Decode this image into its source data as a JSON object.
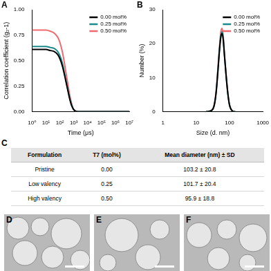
{
  "chart_data": [
    {
      "panel": "A",
      "type": "line",
      "x_label": "Time (μs)",
      "y_label": "Correlation coefficient (g₂-1)",
      "log": "x",
      "grid": false,
      "legend": "top-right",
      "xlim": [
        1,
        10000000
      ],
      "xticks": [
        {
          "value": 1,
          "label": "10⁰"
        },
        {
          "value": 10,
          "label": "10¹"
        },
        {
          "value": 100,
          "label": "10²"
        },
        {
          "value": 1000,
          "label": "10³"
        },
        {
          "value": 10000,
          "label": "10⁴"
        },
        {
          "value": 100000,
          "label": "10⁵"
        },
        {
          "value": 1000000,
          "label": "10⁶"
        },
        {
          "value": 10000000,
          "label": "10⁷"
        }
      ],
      "ylim": [
        0,
        1
      ],
      "yticks": [
        {
          "value": 0,
          "label": "0.00"
        },
        {
          "value": 0.25,
          "label": "0.25"
        },
        {
          "value": 0.5,
          "label": "0.50"
        },
        {
          "value": 0.75,
          "label": "0.75"
        },
        {
          "value": 1,
          "label": "1.00"
        }
      ],
      "x": [
        1,
        10,
        20,
        40,
        70,
        100,
        150,
        200,
        300,
        400,
        500,
        700,
        1000,
        2000,
        10000,
        100000,
        1000000,
        10000000
      ],
      "series": [
        {
          "name": "0.00 mol%",
          "color": "#000000",
          "values": [
            0.61,
            0.61,
            0.6,
            0.59,
            0.56,
            0.52,
            0.45,
            0.38,
            0.27,
            0.19,
            0.13,
            0.06,
            0.02,
            0,
            0,
            0,
            0,
            0
          ]
        },
        {
          "name": "0.25 mol%",
          "color": "#1b8a8c",
          "values": [
            0.64,
            0.64,
            0.63,
            0.62,
            0.59,
            0.55,
            0.48,
            0.4,
            0.28,
            0.2,
            0.14,
            0.07,
            0.02,
            0,
            0,
            0,
            0,
            0
          ]
        },
        {
          "name": "0.50 mol%",
          "color": "#f0686e",
          "values": [
            0.8,
            0.8,
            0.79,
            0.77,
            0.73,
            0.68,
            0.59,
            0.5,
            0.35,
            0.25,
            0.17,
            0.08,
            0.02,
            0,
            0,
            0,
            0,
            0
          ]
        }
      ]
    },
    {
      "panel": "B",
      "type": "line",
      "x_label": "Size (d. nm)",
      "y_label": "Number (%)",
      "log": "x",
      "grid": false,
      "legend": "top-right",
      "xlim": [
        1,
        1000
      ],
      "xticks": [
        1,
        10,
        100,
        1000
      ],
      "ylim": [
        0,
        30
      ],
      "yticks": [
        0,
        10,
        20,
        30
      ],
      "x": [
        20,
        30,
        35,
        40,
        45,
        50,
        55,
        60,
        65,
        70,
        80,
        90,
        100,
        120,
        150
      ],
      "series": [
        {
          "name": "0.00 mol%",
          "color": "#000000",
          "values": [
            0,
            0.5,
            2,
            6,
            12,
            18,
            22,
            23,
            21,
            17,
            10,
            5,
            2,
            0.3,
            0
          ]
        },
        {
          "name": "0.25 mol%",
          "color": "#1b8a8c",
          "values": [
            0,
            0.5,
            2,
            6,
            12.5,
            18.5,
            22.5,
            23.5,
            21.5,
            17,
            10,
            5,
            2,
            0.3,
            0
          ]
        },
        {
          "name": "0.50 mol%",
          "color": "#f0686e",
          "values": [
            0,
            0.6,
            2.3,
            6.5,
            13,
            19,
            23.5,
            24.5,
            22,
            17.5,
            10.5,
            5.2,
            2,
            0.3,
            0
          ]
        }
      ]
    }
  ],
  "table": {
    "panel": "C",
    "header": [
      "Formulation",
      "T7 (mol%)",
      "Mean diameter (nm) ± SD"
    ],
    "rows": [
      [
        "Pristine",
        "0.00",
        "103.2 ± 20.8"
      ],
      [
        "Low valency",
        "0.25",
        "101.7 ± 20.4"
      ],
      [
        "High valency",
        "0.50",
        "95.9 ± 18.8"
      ]
    ]
  },
  "images": [
    {
      "panel": "D"
    },
    {
      "panel": "E"
    },
    {
      "panel": "F"
    }
  ]
}
